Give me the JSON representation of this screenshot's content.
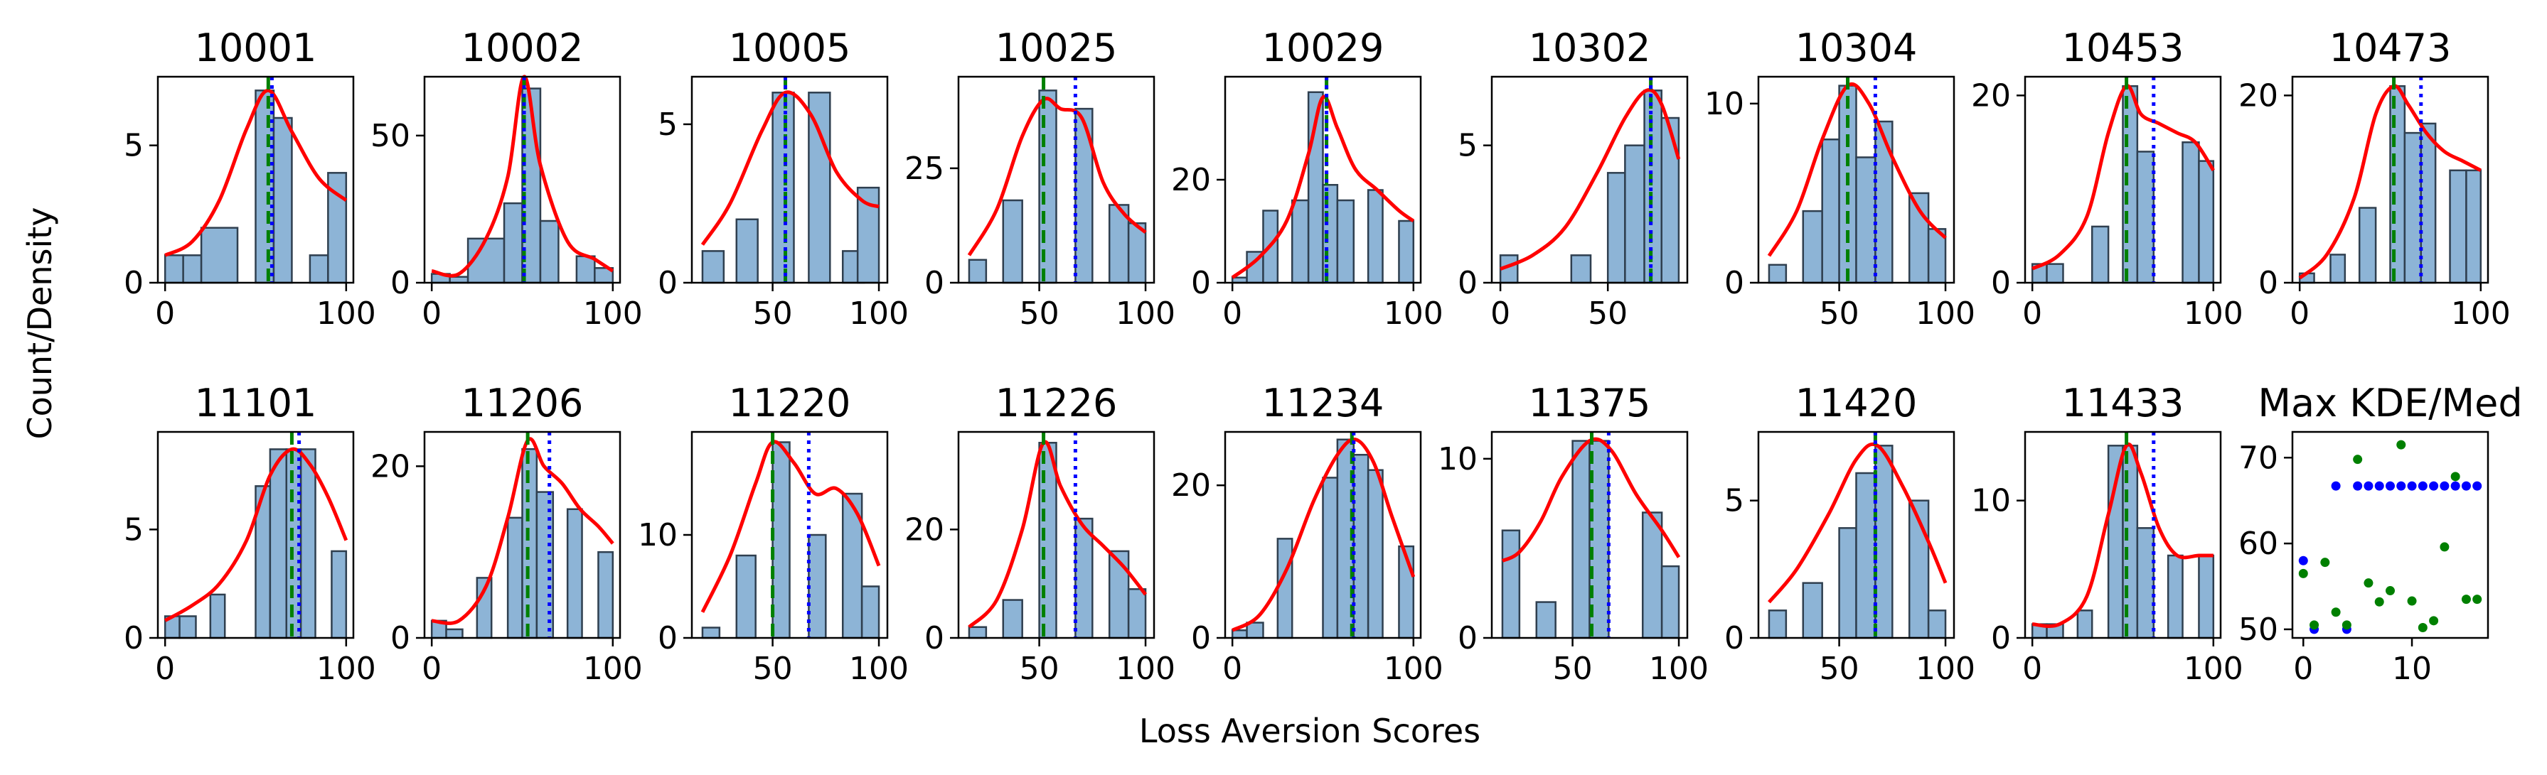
{
  "figure": {
    "xlabel": "Loss Aversion Scores",
    "ylabel": "Count/Density"
  },
  "colors": {
    "bar_fill": "#8db4d6",
    "bar_edge": "#2f3f4f",
    "kde": "#ff0000",
    "mode_line": "#008000",
    "median_line": "#0000ff"
  },
  "chart_data": [
    {
      "type": "bar",
      "title": "10001",
      "bins": [
        [
          0,
          10
        ],
        [
          10,
          20
        ],
        [
          20,
          40
        ],
        [
          50,
          60
        ],
        [
          60,
          70
        ],
        [
          80,
          90
        ],
        [
          90,
          100
        ]
      ],
      "counts": [
        1,
        1,
        2,
        7,
        6,
        1,
        4
      ],
      "kde_x": [
        0,
        15,
        30,
        45,
        57,
        70,
        85,
        100
      ],
      "kde_y": [
        1,
        1.5,
        3,
        5.6,
        7,
        5.5,
        3.8,
        3
      ],
      "mode": 57,
      "median": 59,
      "xticks": [
        0,
        100
      ],
      "yticks": [
        0,
        5
      ],
      "ylim": [
        0,
        7.5
      ],
      "xlim": [
        -4,
        104
      ]
    },
    {
      "type": "bar",
      "title": "10002",
      "bins": [
        [
          0,
          10
        ],
        [
          10,
          20
        ],
        [
          20,
          40
        ],
        [
          40,
          50
        ],
        [
          50,
          60
        ],
        [
          60,
          70
        ],
        [
          80,
          90
        ],
        [
          90,
          100
        ]
      ],
      "counts": [
        3,
        2,
        15,
        27,
        66,
        21,
        9,
        5
      ],
      "kde_x": [
        0,
        15,
        30,
        42,
        51,
        60,
        75,
        90,
        100
      ],
      "kde_y": [
        4,
        3,
        15,
        36,
        70,
        40,
        14,
        8,
        4
      ],
      "mode": 51,
      "median": 51,
      "xticks": [
        0,
        100
      ],
      "yticks": [
        0,
        50
      ],
      "ylim": [
        0,
        70
      ],
      "xlim": [
        -4,
        104
      ]
    },
    {
      "type": "bar",
      "title": "10005",
      "bins": [
        [
          17,
          27
        ],
        [
          33,
          43
        ],
        [
          50,
          60
        ],
        [
          67,
          77
        ],
        [
          83,
          93
        ],
        [
          90,
          100
        ]
      ],
      "counts": [
        1,
        2,
        6,
        6,
        1,
        3
      ],
      "kde_x": [
        17,
        30,
        45,
        56,
        68,
        80,
        92,
        100
      ],
      "kde_y": [
        1.2,
        2.5,
        4.8,
        6,
        5.3,
        3.5,
        2.6,
        2.4
      ],
      "mode": 56,
      "median": 56,
      "xticks": [
        50,
        100
      ],
      "yticks": [
        0,
        5
      ],
      "ylim": [
        0,
        6.5
      ],
      "xlim": [
        12,
        104
      ]
    },
    {
      "type": "bar",
      "title": "10025",
      "bins": [
        [
          17,
          25
        ],
        [
          33,
          42
        ],
        [
          50,
          58
        ],
        [
          67,
          75
        ],
        [
          83,
          92
        ],
        [
          92,
          100
        ]
      ],
      "counts": [
        5,
        18,
        42,
        38,
        17,
        13
      ],
      "kde_x": [
        17,
        30,
        42,
        52,
        60,
        70,
        80,
        90,
        100
      ],
      "kde_y": [
        6,
        16,
        32,
        40,
        38,
        36,
        22,
        15,
        11
      ],
      "mode": 52,
      "median": 67,
      "xticks": [
        50,
        100
      ],
      "yticks": [
        0,
        25
      ],
      "ylim": [
        0,
        45
      ],
      "xlim": [
        12,
        104
      ]
    },
    {
      "type": "bar",
      "title": "10029",
      "bins": [
        [
          0,
          8
        ],
        [
          8,
          17
        ],
        [
          17,
          25
        ],
        [
          33,
          42
        ],
        [
          42,
          50
        ],
        [
          50,
          58
        ],
        [
          58,
          67
        ],
        [
          75,
          83
        ],
        [
          92,
          100
        ]
      ],
      "counts": [
        1,
        6,
        14,
        16,
        37,
        19,
        16,
        18,
        12
      ],
      "kde_x": [
        0,
        15,
        30,
        42,
        50,
        58,
        68,
        80,
        92,
        100
      ],
      "kde_y": [
        1,
        5,
        12,
        25,
        36,
        30,
        22,
        18,
        14,
        12
      ],
      "mode": 52,
      "median": 52,
      "xticks": [
        0,
        100
      ],
      "yticks": [
        0,
        20
      ],
      "ylim": [
        0,
        40
      ],
      "xlim": [
        -4,
        104
      ]
    },
    {
      "type": "bar",
      "title": "10302",
      "bins": [
        [
          0,
          8
        ],
        [
          17,
          25
        ],
        [
          33,
          42
        ],
        [
          50,
          58
        ],
        [
          58,
          67
        ],
        [
          67,
          75
        ],
        [
          75,
          83
        ]
      ],
      "counts": [
        1,
        0,
        1,
        4,
        5,
        7,
        6
      ],
      "kde_x": [
        0,
        15,
        30,
        45,
        58,
        68,
        75,
        83
      ],
      "kde_y": [
        0.5,
        1,
        2,
        4,
        6,
        7,
        6.5,
        4.5
      ],
      "mode": 70,
      "median": 70,
      "xticks": [
        0,
        50
      ],
      "yticks": [
        0,
        5
      ],
      "ylim": [
        0,
        7.5
      ],
      "xlim": [
        -4,
        87
      ]
    },
    {
      "type": "bar",
      "title": "10304",
      "bins": [
        [
          17,
          25
        ],
        [
          33,
          42
        ],
        [
          42,
          50
        ],
        [
          50,
          58
        ],
        [
          58,
          67
        ],
        [
          67,
          75
        ],
        [
          83,
          92
        ],
        [
          92,
          100
        ]
      ],
      "counts": [
        1,
        4,
        8,
        11,
        7,
        9,
        5,
        3
      ],
      "kde_x": [
        17,
        30,
        42,
        54,
        64,
        75,
        88,
        100
      ],
      "kde_y": [
        1.5,
        4,
        8,
        11,
        10,
        7,
        4,
        2.5
      ],
      "mode": 54,
      "median": 67,
      "xticks": [
        50,
        100
      ],
      "yticks": [
        0,
        10
      ],
      "ylim": [
        0,
        11.5
      ],
      "xlim": [
        12,
        104
      ]
    },
    {
      "type": "bar",
      "title": "10453",
      "bins": [
        [
          0,
          8
        ],
        [
          8,
          17
        ],
        [
          33,
          42
        ],
        [
          50,
          58
        ],
        [
          58,
          67
        ],
        [
          67,
          75
        ],
        [
          83,
          92
        ],
        [
          92,
          100
        ]
      ],
      "counts": [
        2,
        2,
        6,
        21,
        14,
        0,
        15,
        13
      ],
      "kde_x": [
        0,
        15,
        30,
        42,
        52,
        60,
        70,
        80,
        90,
        100
      ],
      "kde_y": [
        1.5,
        3,
        7,
        16,
        21,
        18,
        17,
        16,
        15,
        12
      ],
      "mode": 52,
      "median": 67,
      "xticks": [
        0,
        100
      ],
      "yticks": [
        0,
        20
      ],
      "ylim": [
        0,
        22
      ],
      "xlim": [
        -4,
        104
      ]
    },
    {
      "type": "bar",
      "title": "10473",
      "bins": [
        [
          0,
          8
        ],
        [
          17,
          25
        ],
        [
          33,
          42
        ],
        [
          50,
          58
        ],
        [
          58,
          67
        ],
        [
          67,
          75
        ],
        [
          83,
          92
        ],
        [
          92,
          100
        ]
      ],
      "counts": [
        1,
        3,
        8,
        21,
        16,
        17,
        12,
        12
      ],
      "kde_x": [
        0,
        15,
        30,
        42,
        52,
        60,
        70,
        80,
        90,
        100
      ],
      "kde_y": [
        0.5,
        3,
        9,
        18,
        21,
        19,
        16,
        14,
        13,
        12
      ],
      "mode": 52,
      "median": 67,
      "xticks": [
        0,
        100
      ],
      "yticks": [
        0,
        20
      ],
      "ylim": [
        0,
        22
      ],
      "xlim": [
        -4,
        104
      ]
    },
    {
      "type": "bar",
      "title": "11101",
      "bins": [
        [
          0,
          8
        ],
        [
          8,
          17
        ],
        [
          25,
          33
        ],
        [
          50,
          58
        ],
        [
          58,
          67
        ],
        [
          67,
          75
        ],
        [
          75,
          83
        ],
        [
          92,
          100
        ]
      ],
      "counts": [
        1,
        1,
        2,
        7,
        8.7,
        8.7,
        8.7,
        4
      ],
      "kde_x": [
        0,
        15,
        30,
        45,
        58,
        70,
        80,
        90,
        100
      ],
      "kde_y": [
        0.8,
        1.5,
        2.5,
        4.5,
        7.5,
        8.7,
        8,
        6.5,
        4.5
      ],
      "mode": 70,
      "median": 74,
      "xticks": [
        0,
        100
      ],
      "yticks": [
        0,
        5
      ],
      "ylim": [
        0,
        9.5
      ],
      "xlim": [
        -4,
        104
      ]
    },
    {
      "type": "bar",
      "title": "11206",
      "bins": [
        [
          0,
          8
        ],
        [
          8,
          17
        ],
        [
          25,
          33
        ],
        [
          42,
          50
        ],
        [
          50,
          58
        ],
        [
          58,
          67
        ],
        [
          75,
          83
        ],
        [
          92,
          100
        ]
      ],
      "counts": [
        2,
        1,
        7,
        14,
        22,
        17,
        15,
        10
      ],
      "kde_x": [
        0,
        15,
        30,
        42,
        53,
        62,
        72,
        82,
        92,
        100
      ],
      "kde_y": [
        2,
        2,
        6,
        14,
        23,
        20,
        18,
        15,
        13,
        11
      ],
      "mode": 53,
      "median": 65,
      "xticks": [
        0,
        100
      ],
      "yticks": [
        0,
        20
      ],
      "ylim": [
        0,
        24
      ],
      "xlim": [
        -4,
        104
      ]
    },
    {
      "type": "bar",
      "title": "11220",
      "bins": [
        [
          17,
          25
        ],
        [
          33,
          42
        ],
        [
          50,
          58
        ],
        [
          67,
          75
        ],
        [
          83,
          92
        ],
        [
          92,
          100
        ]
      ],
      "counts": [
        1,
        8,
        19,
        10,
        14,
        5
      ],
      "kde_x": [
        17,
        30,
        42,
        50,
        60,
        70,
        80,
        90,
        100
      ],
      "kde_y": [
        2.5,
        8,
        15,
        19,
        17,
        14,
        14.5,
        12,
        7
      ],
      "mode": 50,
      "median": 67,
      "xticks": [
        50,
        100
      ],
      "yticks": [
        0,
        10
      ],
      "ylim": [
        0,
        20
      ],
      "xlim": [
        12,
        104
      ]
    },
    {
      "type": "bar",
      "title": "11226",
      "bins": [
        [
          17,
          25
        ],
        [
          33,
          42
        ],
        [
          50,
          58
        ],
        [
          67,
          75
        ],
        [
          83,
          92
        ],
        [
          92,
          100
        ]
      ],
      "counts": [
        2,
        7,
        36,
        22,
        16,
        9
      ],
      "kde_x": [
        17,
        30,
        42,
        52,
        60,
        70,
        80,
        90,
        100
      ],
      "kde_y": [
        2,
        7,
        20,
        36,
        28,
        21,
        17,
        13,
        8
      ],
      "mode": 52,
      "median": 67,
      "xticks": [
        50,
        100
      ],
      "yticks": [
        0,
        20
      ],
      "ylim": [
        0,
        38
      ],
      "xlim": [
        12,
        104
      ]
    },
    {
      "type": "bar",
      "title": "11234",
      "bins": [
        [
          0,
          8
        ],
        [
          8,
          17
        ],
        [
          25,
          33
        ],
        [
          50,
          58
        ],
        [
          58,
          67
        ],
        [
          67,
          75
        ],
        [
          75,
          83
        ],
        [
          92,
          100
        ]
      ],
      "counts": [
        1,
        2,
        13,
        21,
        26,
        24,
        22,
        12
      ],
      "kde_x": [
        0,
        15,
        30,
        45,
        58,
        68,
        78,
        88,
        100
      ],
      "kde_y": [
        1,
        3,
        9,
        18,
        24,
        26,
        23,
        16,
        8
      ],
      "mode": 66,
      "median": 67,
      "xticks": [
        0,
        100
      ],
      "yticks": [
        0,
        20
      ],
      "ylim": [
        0,
        27
      ],
      "xlim": [
        -4,
        104
      ]
    },
    {
      "type": "bar",
      "title": "11375",
      "bins": [
        [
          17,
          25
        ],
        [
          33,
          42
        ],
        [
          50,
          58
        ],
        [
          58,
          67
        ],
        [
          83,
          92
        ],
        [
          92,
          100
        ]
      ],
      "counts": [
        6,
        2,
        11,
        11,
        7,
        4
      ],
      "kde_x": [
        17,
        25,
        35,
        45,
        58,
        68,
        80,
        92,
        100
      ],
      "kde_y": [
        4.3,
        4.8,
        6.5,
        9,
        11,
        10.5,
        8,
        6,
        4.5
      ],
      "mode": 59,
      "median": 67,
      "xticks": [
        50,
        100
      ],
      "yticks": [
        0,
        10
      ],
      "ylim": [
        0,
        11.5
      ],
      "xlim": [
        12,
        104
      ]
    },
    {
      "type": "bar",
      "title": "11420",
      "bins": [
        [
          17,
          25
        ],
        [
          33,
          42
        ],
        [
          50,
          58
        ],
        [
          58,
          67
        ],
        [
          67,
          75
        ],
        [
          83,
          92
        ],
        [
          92,
          100
        ]
      ],
      "counts": [
        1,
        2,
        4,
        6,
        7,
        5,
        1
      ],
      "kde_x": [
        17,
        30,
        45,
        58,
        68,
        80,
        92,
        100
      ],
      "kde_y": [
        1.3,
        2.5,
        4.5,
        6.5,
        7,
        5.5,
        3.5,
        2
      ],
      "mode": 67,
      "median": 67,
      "xticks": [
        50,
        100
      ],
      "yticks": [
        0,
        5
      ],
      "ylim": [
        0,
        7.5
      ],
      "xlim": [
        12,
        104
      ]
    },
    {
      "type": "bar",
      "title": "11433",
      "bins": [
        [
          0,
          8
        ],
        [
          8,
          17
        ],
        [
          25,
          33
        ],
        [
          42,
          50
        ],
        [
          50,
          58
        ],
        [
          58,
          67
        ],
        [
          75,
          83
        ],
        [
          92,
          100
        ]
      ],
      "counts": [
        1,
        1,
        2,
        14,
        14,
        8,
        6,
        6
      ],
      "kde_x": [
        0,
        15,
        30,
        42,
        52,
        60,
        70,
        80,
        92,
        100
      ],
      "kde_y": [
        1,
        1,
        3,
        9,
        14,
        12,
        8,
        6,
        6,
        6
      ],
      "mode": 52,
      "median": 67,
      "xticks": [
        0,
        100
      ],
      "yticks": [
        0,
        10
      ],
      "ylim": [
        0,
        15
      ],
      "xlim": [
        -4,
        104
      ]
    },
    {
      "type": "scatter",
      "title": "Max KDE/Med",
      "xlim": [
        -1,
        17
      ],
      "ylim": [
        49,
        73
      ],
      "xticks": [
        0,
        10
      ],
      "yticks": [
        50,
        60,
        70
      ],
      "series": [
        {
          "color": "#0000ff",
          "x": [
            0,
            1,
            3,
            4,
            5,
            6,
            7,
            8,
            9,
            10,
            11,
            12,
            13,
            14,
            15,
            16
          ],
          "y": [
            58,
            50,
            66.7,
            50,
            66.7,
            66.7,
            66.7,
            66.7,
            66.7,
            66.7,
            66.7,
            66.7,
            66.7,
            66.7,
            66.7,
            66.7
          ]
        },
        {
          "color": "#008000",
          "x": [
            0,
            1,
            2,
            3,
            4,
            5,
            6,
            7,
            8,
            9,
            10,
            11,
            12,
            13,
            14,
            15,
            16
          ],
          "y": [
            56.5,
            50.5,
            57.8,
            52,
            50.5,
            69.8,
            55.4,
            53.2,
            54.5,
            71.5,
            53.3,
            50.2,
            51,
            59.6,
            67.8,
            53.5,
            53.5
          ]
        }
      ]
    }
  ]
}
